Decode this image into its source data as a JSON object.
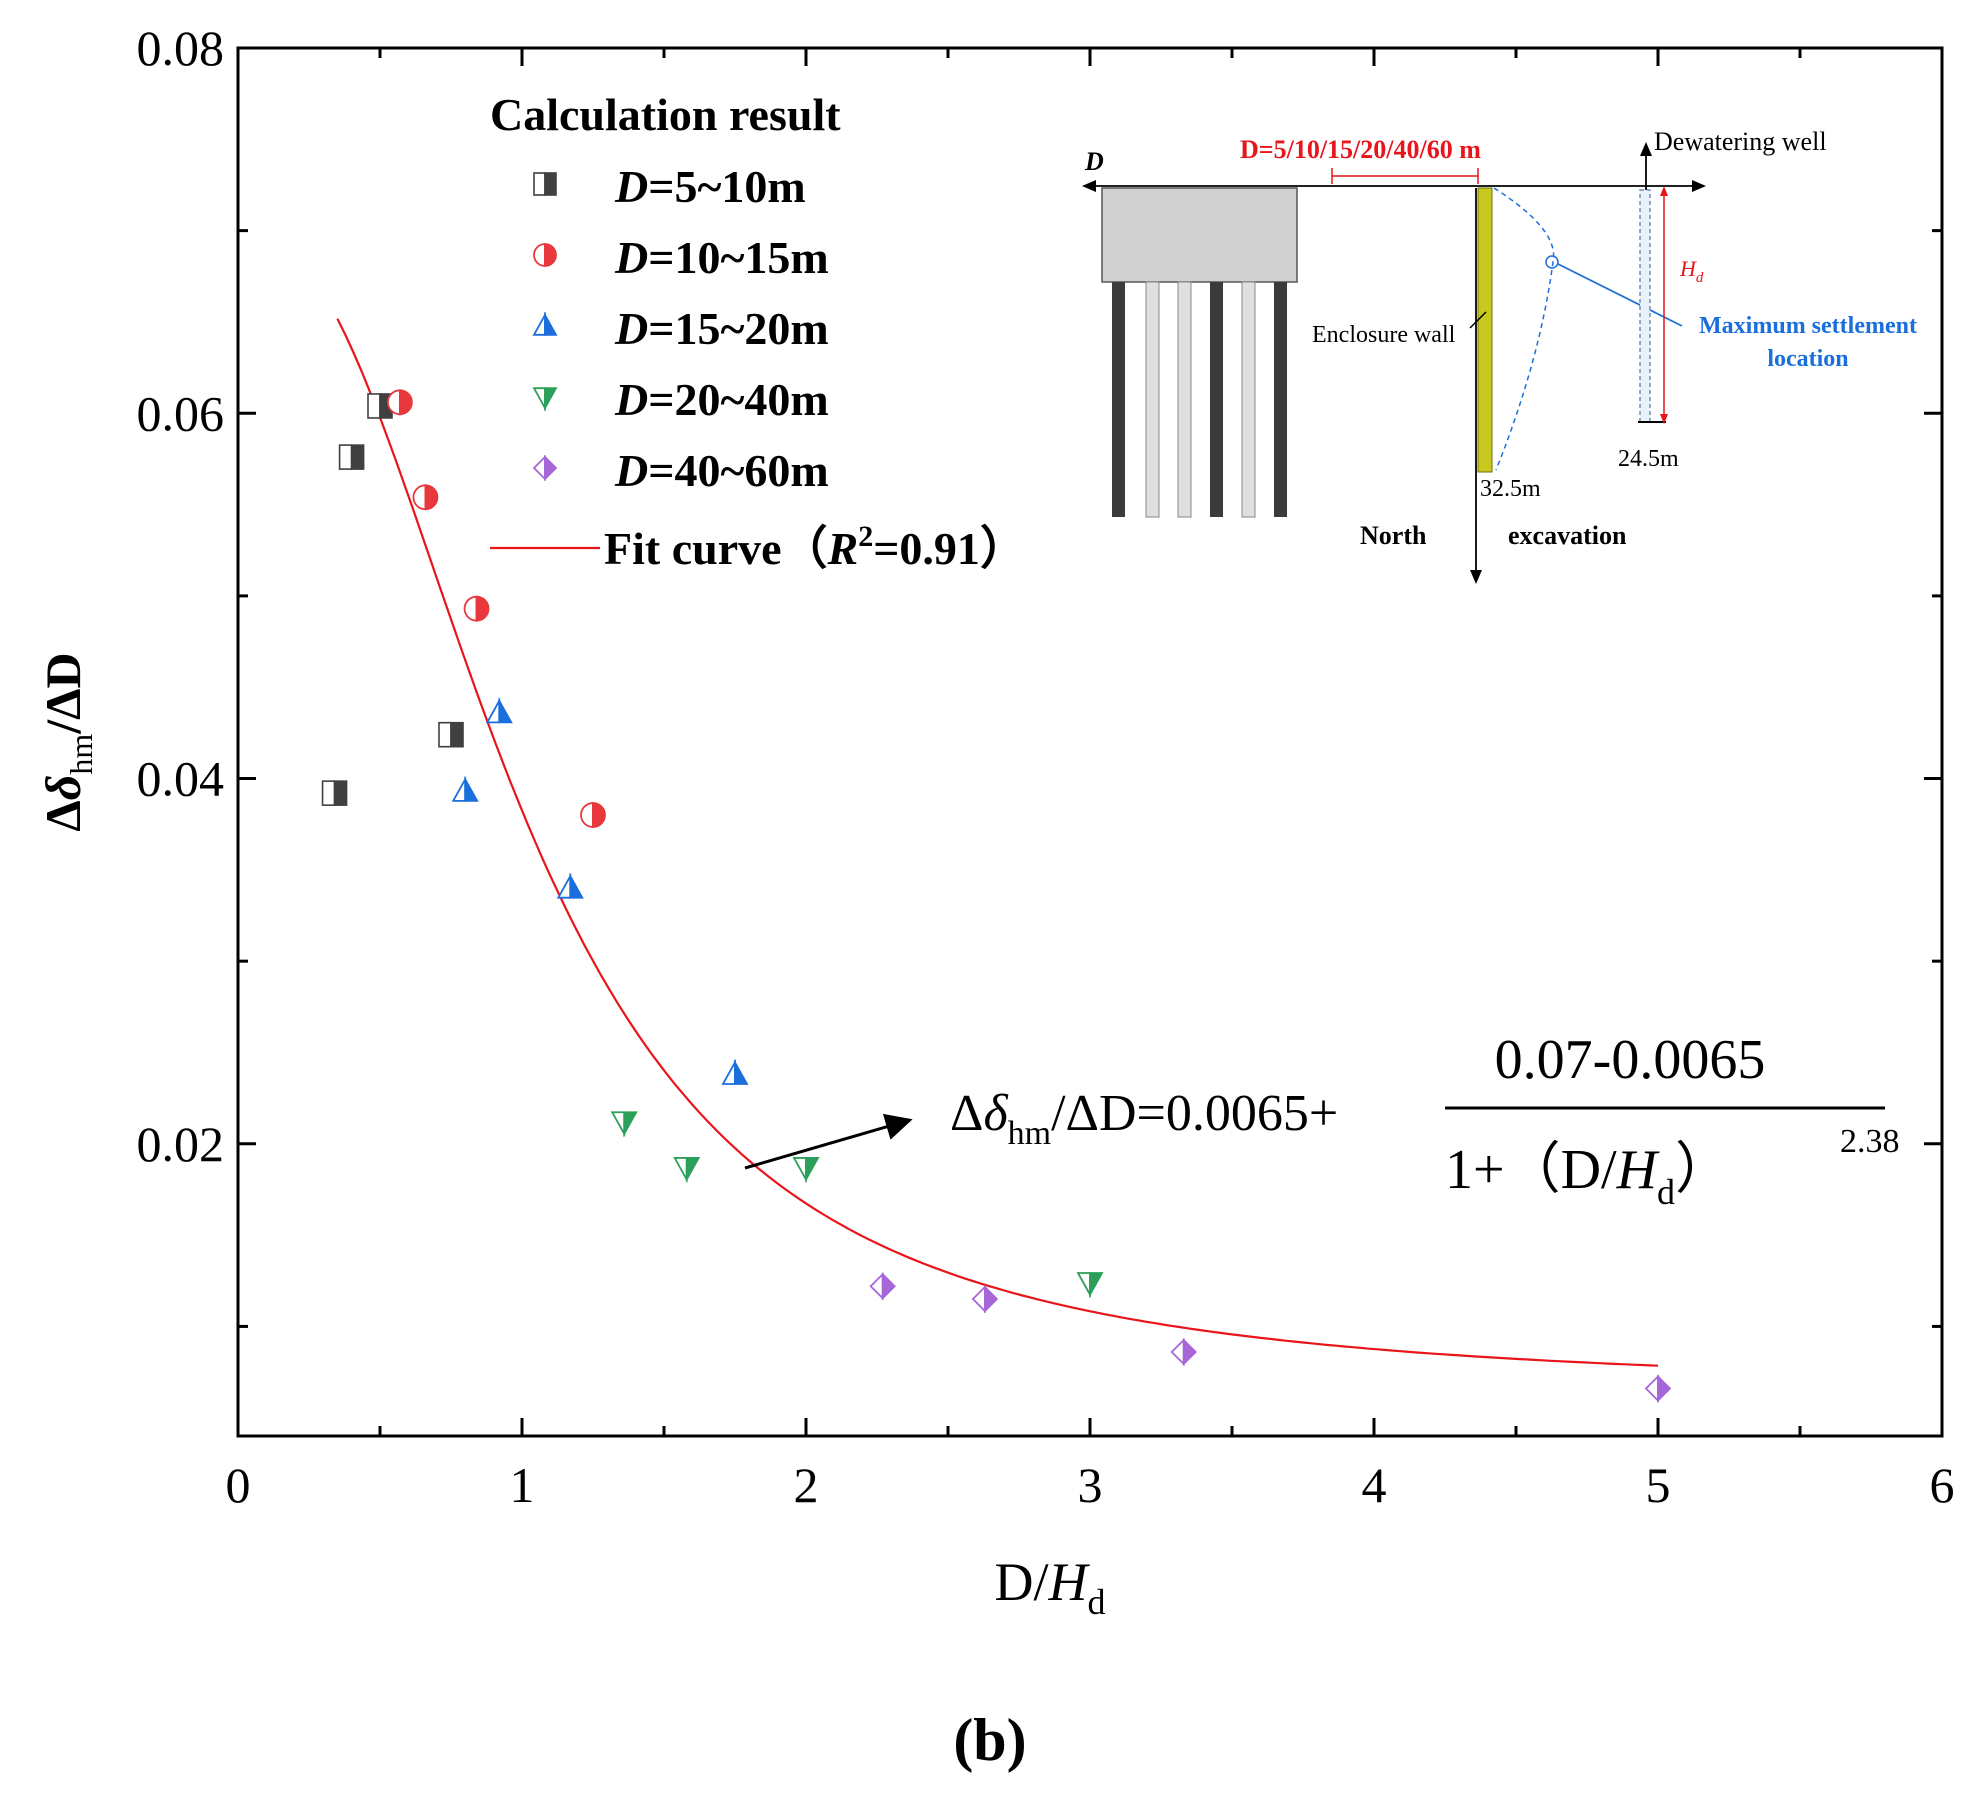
{
  "figure_label": "(b)",
  "chart_data": {
    "type": "scatter",
    "xlabel": "D/H_d",
    "ylabel": "Δδ_hm/ΔD",
    "xlim": [
      0,
      6
    ],
    "ylim": [
      0.004,
      0.08
    ],
    "x_ticks": [
      0,
      1,
      2,
      3,
      4,
      5,
      6
    ],
    "y_ticks": [
      0.02,
      0.04,
      0.06,
      0.08
    ],
    "x_tick_labels": [
      "0",
      "1",
      "2",
      "3",
      "4",
      "5",
      "6"
    ],
    "y_tick_labels": [
      "0.02",
      "0.04",
      "0.06",
      "0.08"
    ],
    "legend_title": "Calculation result",
    "series": [
      {
        "name": "D=5~10m",
        "prefix": "D",
        "suffix": "=5~10m",
        "marker": "square",
        "color": "#404040",
        "points": [
          [
            0.34,
            0.0392
          ],
          [
            0.4,
            0.0576
          ],
          [
            0.5,
            0.0604
          ],
          [
            0.75,
            0.0424
          ]
        ]
      },
      {
        "name": "D=10~15m",
        "prefix": "D",
        "suffix": "=10~15m",
        "marker": "circle",
        "color": "#e8383d",
        "points": [
          [
            0.57,
            0.0606
          ],
          [
            0.66,
            0.0554
          ],
          [
            0.84,
            0.0493
          ],
          [
            1.25,
            0.038
          ]
        ]
      },
      {
        "name": "D=15~20m",
        "prefix": "D",
        "suffix": "=15~20m",
        "marker": "triangle-up",
        "color": "#1a6fdc",
        "points": [
          [
            0.8,
            0.0393
          ],
          [
            0.92,
            0.0436
          ],
          [
            1.17,
            0.034
          ],
          [
            1.75,
            0.0238
          ]
        ]
      },
      {
        "name": "D=20~40m",
        "prefix": "D",
        "suffix": "=20~40m",
        "marker": "triangle-down",
        "color": "#2ca05a",
        "points": [
          [
            1.36,
            0.0212
          ],
          [
            1.58,
            0.0187
          ],
          [
            2.0,
            0.0187
          ],
          [
            3.0,
            0.0124
          ]
        ]
      },
      {
        "name": "D=40~60m",
        "prefix": "D",
        "suffix": "=40~60m",
        "marker": "diamond",
        "color": "#a666d8",
        "points": [
          [
            2.27,
            0.0122
          ],
          [
            2.63,
            0.0115
          ],
          [
            3.33,
            0.0086
          ],
          [
            5.0,
            0.0066
          ]
        ]
      }
    ],
    "fit": {
      "name": "Fit curve",
      "r2_text": "=0.91",
      "color": "#e8151b",
      "y0": 0.0065,
      "a": 0.07,
      "p": 2.38,
      "x_range": [
        0.35,
        5.0
      ],
      "eq_left_a": "Δ",
      "eq_left_b": "δ",
      "eq_left_sub": "hm",
      "eq_left_c": "/ΔD=0.0065+",
      "eq_numerator": "0.07-0.0065",
      "eq_den_a": "1+（D/",
      "eq_den_b": "H",
      "eq_den_sub": "d",
      "eq_den_c": "）",
      "eq_exponent": "2.38"
    }
  },
  "inset": {
    "d_label": "D",
    "distance_label": "D=5/10/15/20/40/60 m",
    "dewatering_label": "Dewatering well",
    "hd_label": "H",
    "hd_sub": "d",
    "enclosure_label": "Enclosure wall",
    "max_settlement_line1": "Maximum settlement",
    "max_settlement_line2": "location",
    "wall_depth": "32.5m",
    "well_depth": "24.5m",
    "north_label": "North",
    "excavation_label": "excavation"
  }
}
